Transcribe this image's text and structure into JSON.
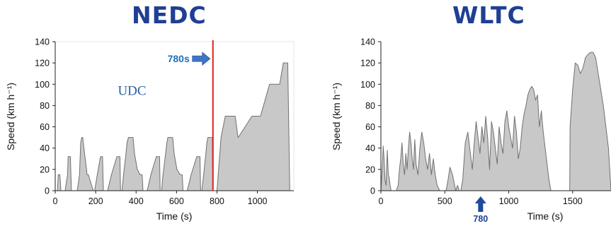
{
  "chart_data": [
    {
      "type": "area",
      "title": "NEDC",
      "xlabel": "Time (s)",
      "ylabel": "Speed (km h⁻¹)",
      "xlim": [
        0,
        1180
      ],
      "ylim": [
        0,
        140
      ],
      "xticks": [
        0,
        200,
        400,
        600,
        800,
        1000
      ],
      "yticks": [
        0,
        20,
        40,
        60,
        80,
        100,
        120,
        140
      ],
      "fill_color": "#c8c8c8",
      "line_color": "#707070",
      "annotations": [
        {
          "text": "UDC",
          "x": 380,
          "y": 90,
          "color": "#2b5fa8"
        },
        {
          "text": "780s",
          "x": 780,
          "y": 124,
          "color": "#1f6fb8",
          "arrow": "right"
        }
      ],
      "vline": {
        "x": 780,
        "color": "#e02020"
      },
      "x": [
        0,
        11,
        15,
        23,
        28,
        49,
        61,
        64,
        66,
        75,
        80,
        109,
        120,
        124,
        126,
        131,
        136,
        145,
        155,
        157,
        164,
        188,
        195,
        208,
        224,
        234,
        238,
        259,
        278,
        305,
        320,
        323,
        330,
        338,
        350,
        355,
        362,
        385,
        392,
        406,
        420,
        430,
        434,
        455,
        473,
        500,
        516,
        519,
        526,
        533,
        546,
        552,
        557,
        581,
        588,
        602,
        618,
        628,
        632,
        653,
        672,
        700,
        716,
        719,
        725,
        734,
        745,
        750,
        755,
        777,
        780,
        800,
        820,
        841,
        890,
        904,
        905,
        973,
        1015,
        1060,
        1110,
        1128,
        1150,
        1160
      ],
      "y": [
        0,
        0,
        15,
        15,
        0,
        0,
        15,
        32,
        32,
        32,
        0,
        0,
        15,
        35,
        45,
        50,
        50,
        35,
        20,
        15,
        15,
        0,
        0,
        15,
        32,
        32,
        0,
        0,
        15,
        32,
        32,
        0,
        0,
        15,
        35,
        45,
        50,
        50,
        35,
        20,
        15,
        15,
        0,
        0,
        15,
        32,
        32,
        0,
        0,
        15,
        35,
        45,
        50,
        50,
        35,
        20,
        15,
        15,
        0,
        0,
        15,
        32,
        32,
        0,
        0,
        15,
        35,
        45,
        50,
        50,
        0,
        0,
        50,
        70,
        70,
        50,
        50,
        70,
        70,
        100,
        100,
        120,
        120,
        0
      ]
    },
    {
      "type": "area",
      "title": "WLTC",
      "xlabel": "Time (s)",
      "ylabel": "Speed (km h⁻¹)",
      "xlim": [
        0,
        1800
      ],
      "ylim": [
        0,
        140
      ],
      "xticks": [
        0,
        500,
        1000,
        1500
      ],
      "yticks": [
        0,
        20,
        40,
        60,
        80,
        100,
        120,
        140
      ],
      "fill_color": "#c8c8c8",
      "line_color": "#707070",
      "annotations": [
        {
          "text": "780",
          "x": 780,
          "y": -20,
          "color": "#1f3f94",
          "arrow": "up"
        }
      ],
      "x": [
        0,
        12,
        18,
        25,
        32,
        40,
        50,
        58,
        65,
        72,
        80,
        95,
        120,
        135,
        145,
        155,
        165,
        175,
        185,
        195,
        205,
        215,
        225,
        235,
        245,
        255,
        265,
        275,
        290,
        305,
        320,
        335,
        350,
        365,
        380,
        395,
        410,
        425,
        440,
        460,
        480,
        495,
        510,
        525,
        540,
        560,
        585,
        600,
        612,
        625,
        640,
        660,
        680,
        700,
        715,
        730,
        745,
        760,
        775,
        790,
        805,
        820,
        835,
        850,
        865,
        880,
        895,
        910,
        925,
        940,
        955,
        970,
        985,
        1000,
        1015,
        1030,
        1045,
        1060,
        1075,
        1090,
        1105,
        1120,
        1135,
        1150,
        1165,
        1180,
        1195,
        1210,
        1225,
        1240,
        1255,
        1270,
        1285,
        1300,
        1315,
        1330,
        1345,
        1360,
        1375,
        1390,
        1405,
        1420,
        1435,
        1450,
        1465,
        1477,
        1480,
        1500,
        1520,
        1540,
        1560,
        1580,
        1600,
        1620,
        1640,
        1660,
        1680,
        1700,
        1720,
        1740,
        1760,
        1780,
        1800
      ],
      "y": [
        0,
        25,
        42,
        30,
        10,
        5,
        38,
        15,
        12,
        5,
        0,
        0,
        0,
        5,
        20,
        30,
        45,
        25,
        15,
        35,
        20,
        40,
        55,
        45,
        30,
        20,
        48,
        25,
        15,
        40,
        55,
        45,
        30,
        20,
        35,
        15,
        30,
        15,
        5,
        0,
        0,
        0,
        0,
        10,
        22,
        15,
        0,
        5,
        0,
        0,
        10,
        45,
        55,
        35,
        20,
        45,
        65,
        50,
        35,
        60,
        45,
        70,
        50,
        20,
        65,
        55,
        40,
        25,
        60,
        45,
        35,
        65,
        75,
        60,
        50,
        40,
        70,
        55,
        30,
        40,
        60,
        72,
        80,
        90,
        95,
        98,
        95,
        85,
        90,
        60,
        75,
        55,
        40,
        25,
        10,
        0,
        0,
        0,
        0,
        0,
        0,
        0,
        0,
        0,
        0,
        0,
        60,
        95,
        120,
        118,
        110,
        115,
        125,
        128,
        130,
        130,
        125,
        110,
        95,
        80,
        60,
        40,
        0
      ]
    }
  ]
}
